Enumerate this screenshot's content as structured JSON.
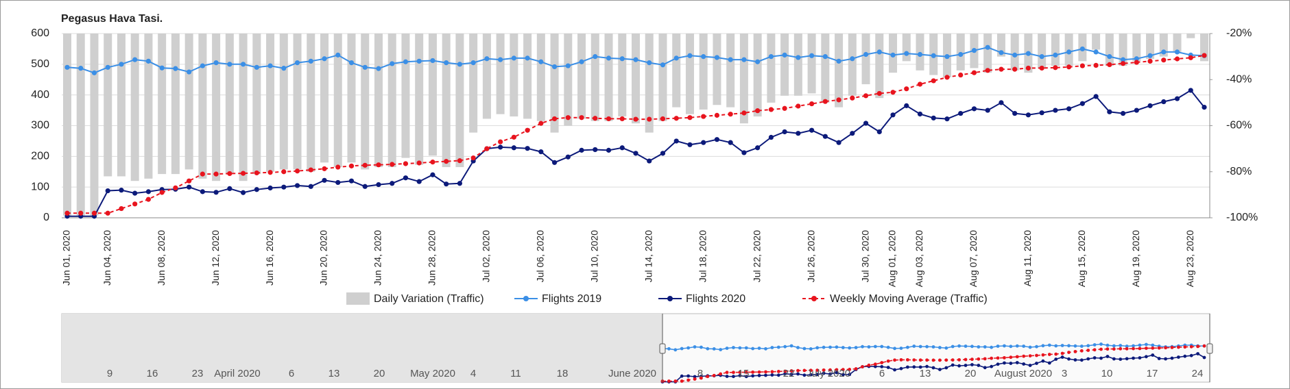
{
  "chart_data": {
    "type": "combo",
    "title": "Pegasus Hava Tasi.",
    "categories": [
      "Jun 01, 2020",
      null,
      null,
      "Jun 04, 2020",
      null,
      null,
      null,
      "Jun 08, 2020",
      null,
      null,
      null,
      "Jun 12, 2020",
      null,
      null,
      null,
      "Jun 16, 2020",
      null,
      null,
      null,
      "Jun 20, 2020",
      null,
      null,
      null,
      "Jun 24, 2020",
      null,
      null,
      null,
      "Jun 28, 2020",
      null,
      null,
      null,
      "Jul 02, 2020",
      null,
      null,
      null,
      "Jul 06, 2020",
      null,
      null,
      null,
      "Jul 10, 2020",
      null,
      null,
      null,
      "Jul 14, 2020",
      null,
      null,
      null,
      "Jul 18, 2020",
      null,
      null,
      null,
      "Jul 22, 2020",
      null,
      null,
      null,
      "Jul 26, 2020",
      null,
      null,
      null,
      "Jul 30, 2020",
      null,
      "Aug 01, 2020",
      null,
      "Aug 03, 2020",
      null,
      null,
      null,
      "Aug 07, 2020",
      null,
      null,
      null,
      "Aug 11, 2020",
      null,
      null,
      null,
      "Aug 15, 2020",
      null,
      null,
      null,
      "Aug 19, 2020",
      null,
      null,
      null,
      "Aug 23, 2020",
      null
    ],
    "series": [
      {
        "name": "Daily Variation (Traffic)",
        "type": "bar",
        "axis": "y2",
        "color": "#cfcfcf",
        "values": [
          -99,
          -99,
          -99,
          -82,
          -82,
          -84,
          -83,
          -81,
          -81,
          -79,
          -83,
          -84,
          -81,
          -84,
          -81,
          -80,
          -79,
          -79,
          -80,
          -76,
          -78,
          -76,
          -79,
          -78,
          -78,
          -74,
          -77,
          -73,
          -78,
          -78,
          -63,
          -57,
          -55,
          -56,
          -57,
          -58,
          -63,
          -60,
          -57,
          -58,
          -58,
          -56,
          -59,
          -63,
          -58,
          -52,
          -55,
          -53,
          -51,
          -52,
          -59,
          -56,
          -50,
          -47,
          -47,
          -46,
          -50,
          -52,
          -47,
          -42,
          -48,
          -37,
          -32,
          -36,
          -38,
          -39,
          -36,
          -35,
          -37,
          -30,
          -36,
          -37,
          -35,
          -34,
          -34,
          -32,
          -27,
          -34,
          -34,
          -32,
          -31,
          -30,
          -28,
          -22,
          -32
        ]
      },
      {
        "name": "Flights 2019",
        "type": "line",
        "color": "#3b8fe6",
        "values": [
          490,
          487,
          472,
          490,
          500,
          515,
          510,
          488,
          486,
          475,
          495,
          505,
          500,
          500,
          490,
          495,
          487,
          505,
          510,
          518,
          530,
          505,
          490,
          486,
          502,
          508,
          510,
          512,
          505,
          500,
          505,
          518,
          515,
          520,
          520,
          508,
          492,
          495,
          508,
          525,
          520,
          518,
          515,
          505,
          498,
          520,
          528,
          525,
          522,
          515,
          515,
          508,
          525,
          530,
          522,
          528,
          525,
          510,
          518,
          532,
          540,
          530,
          535,
          532,
          528,
          525,
          532,
          545,
          555,
          538,
          530,
          535,
          525,
          530,
          540,
          550,
          540,
          525,
          515,
          518,
          528,
          540,
          540,
          530,
          528
        ]
      },
      {
        "name": "Flights 2020",
        "type": "line",
        "color": "#0c1a7a",
        "values": [
          5,
          5,
          5,
          88,
          90,
          80,
          85,
          92,
          93,
          100,
          85,
          83,
          95,
          82,
          92,
          97,
          100,
          105,
          102,
          122,
          115,
          120,
          102,
          108,
          112,
          130,
          118,
          140,
          110,
          112,
          185,
          225,
          230,
          228,
          226,
          215,
          180,
          198,
          220,
          222,
          220,
          228,
          210,
          185,
          210,
          250,
          238,
          245,
          255,
          245,
          212,
          228,
          262,
          280,
          275,
          285,
          265,
          245,
          275,
          308,
          280,
          335,
          365,
          338,
          325,
          322,
          340,
          355,
          350,
          375,
          340,
          335,
          342,
          350,
          355,
          372,
          395,
          345,
          340,
          350,
          365,
          378,
          388,
          415,
          360
        ]
      },
      {
        "name": "Weekly Moving Average (Traffic)",
        "type": "line",
        "axis": "y2",
        "color": "#e8141e",
        "dashed": true,
        "values": [
          -98,
          -98,
          -98,
          -98,
          -96,
          -94,
          -92,
          -89,
          -87,
          -84,
          -81,
          -81,
          -80.8,
          -80.7,
          -80.5,
          -80.3,
          -80,
          -79.7,
          -79.2,
          -78.7,
          -78,
          -77.5,
          -77.2,
          -77,
          -76.8,
          -76.5,
          -76.2,
          -75.8,
          -75.5,
          -75.2,
          -74,
          -70,
          -67,
          -65,
          -62,
          -59,
          -57,
          -56.5,
          -56.5,
          -56.8,
          -57,
          -57,
          -57.2,
          -57.2,
          -57,
          -56.8,
          -56.5,
          -56,
          -55.5,
          -55,
          -54.5,
          -53.5,
          -53,
          -52.5,
          -51.5,
          -50.5,
          -49.5,
          -48.8,
          -48,
          -47,
          -46,
          -45.5,
          -44,
          -42,
          -40.5,
          -39,
          -38,
          -37,
          -36,
          -35.5,
          -35.5,
          -35,
          -35,
          -34.8,
          -34.5,
          -34,
          -33.8,
          -33.5,
          -33,
          -32.5,
          -32,
          -31.5,
          -31,
          -30.5,
          -29.5
        ]
      }
    ],
    "ylim": [
      0,
      600
    ],
    "yticks": [
      0,
      100,
      200,
      300,
      400,
      500,
      600
    ],
    "y2lim": [
      -100,
      -20
    ],
    "y2ticks": [
      {
        "value": -100,
        "label": "-100%"
      },
      {
        "value": -80,
        "label": "-80%"
      },
      {
        "value": -60,
        "label": "-60%"
      },
      {
        "value": -40,
        "label": "-40%"
      },
      {
        "value": -20,
        "label": "-20%"
      }
    ],
    "grid": true,
    "legend": "bottom",
    "navigator_labels": [
      "9",
      "16",
      "23",
      "April 2020",
      "6",
      "13",
      "20",
      "May 2020",
      "4",
      "11",
      "18",
      "June 2020",
      "8",
      "15",
      "22",
      "July 2020",
      "6",
      "13",
      "20",
      "August 2020",
      "3",
      "10",
      "17",
      "24"
    ]
  }
}
